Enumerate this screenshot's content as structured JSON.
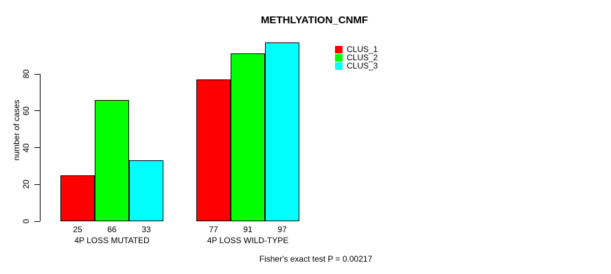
{
  "chart_data": {
    "type": "bar",
    "title": "METHLYATION_CNMF",
    "ylabel": "number of cases",
    "xlabel": "",
    "categories": [
      "4P LOSS MUTATED",
      "4P LOSS WILD-TYPE"
    ],
    "series": [
      {
        "name": "CLUS_1",
        "color": "#ff0000",
        "values": [
          25,
          77
        ]
      },
      {
        "name": "CLUS_2",
        "color": "#00ff00",
        "values": [
          66,
          91
        ]
      },
      {
        "name": "CLUS_3",
        "color": "#00ffff",
        "values": [
          33,
          97
        ]
      }
    ],
    "bar_value_labels": [
      [
        25,
        66,
        33
      ],
      [
        77,
        91,
        97
      ]
    ],
    "ylim": [
      0,
      80
    ],
    "yticks": [
      0,
      20,
      40,
      60,
      80
    ],
    "grid": false,
    "legend_position": "top-right",
    "annotation": "Fisher's exact test P = 0.00217",
    "bar_border_color": "#000000",
    "axis_color": "#000000",
    "background_color": "#ffffff"
  }
}
